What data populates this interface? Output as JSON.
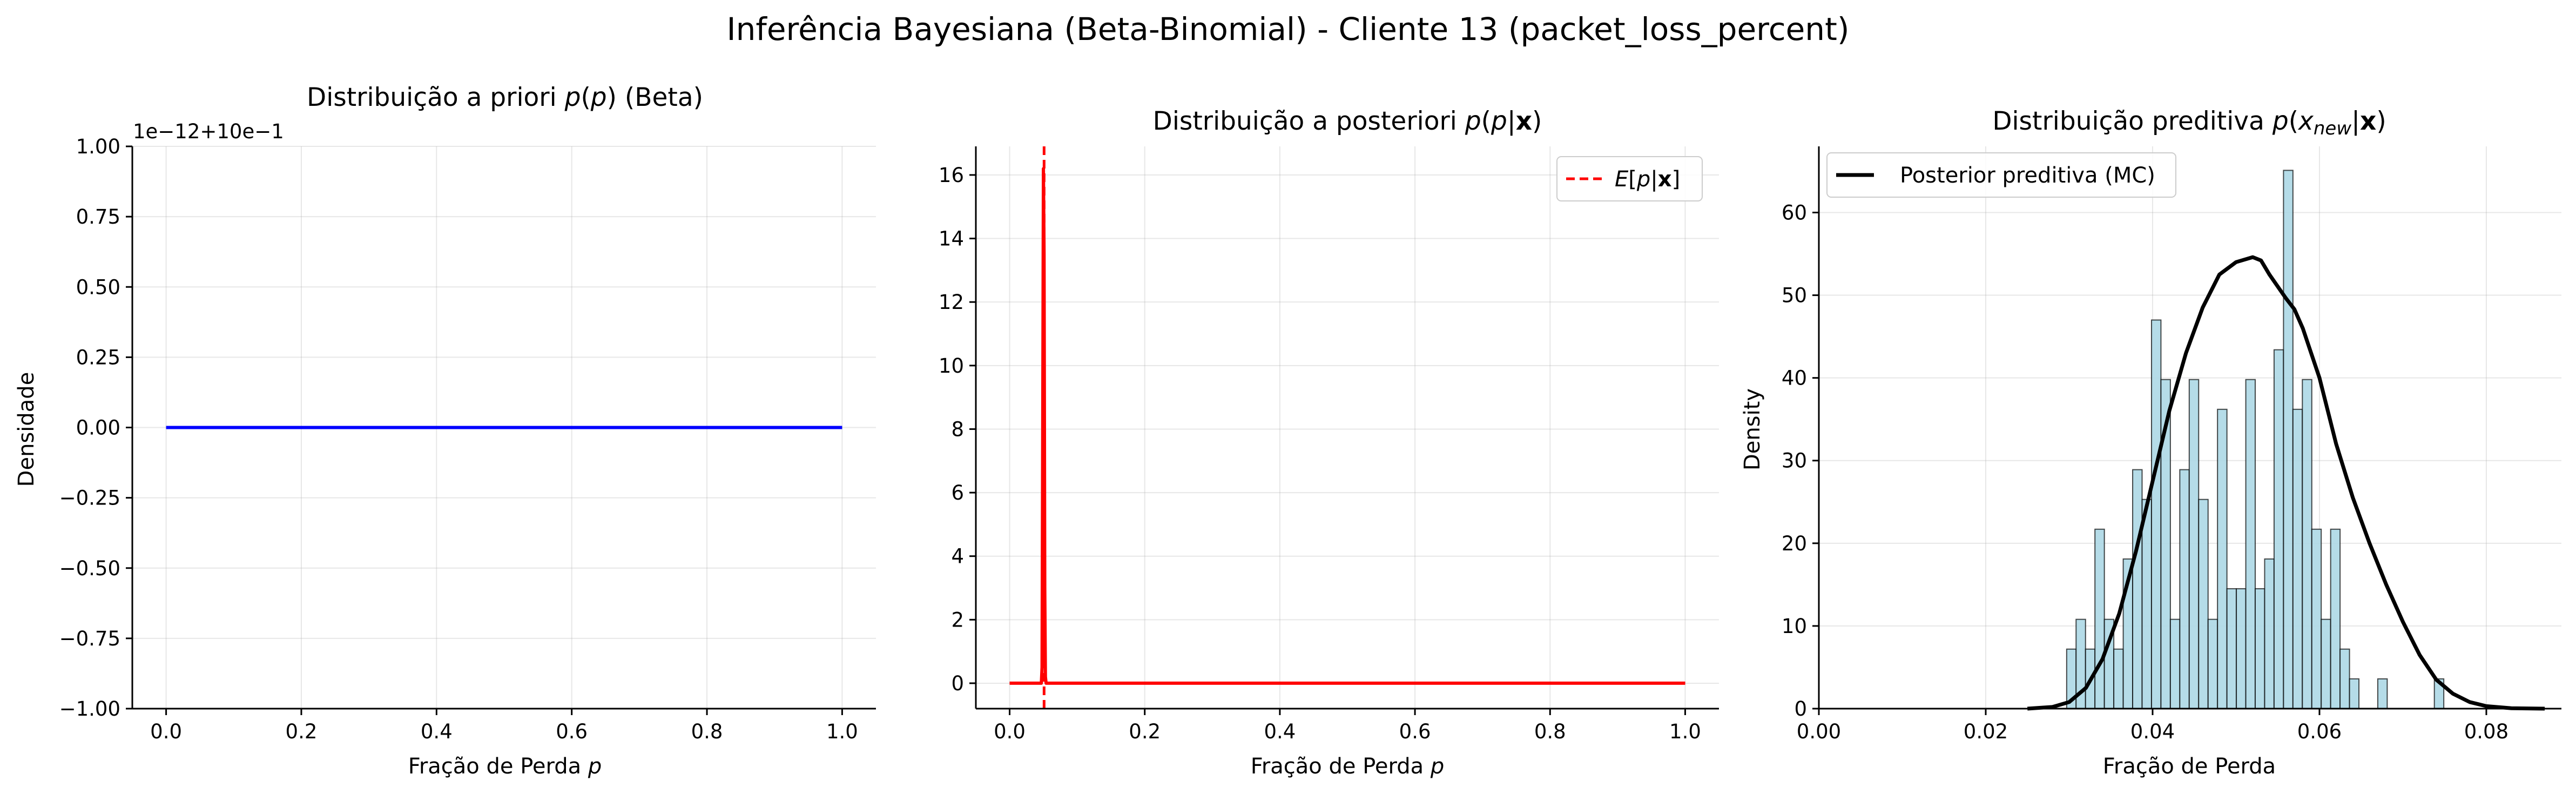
{
  "suptitle": "Inferência Bayesiana (Beta-Binomial) - Cliente 13 (packet_loss_percent)",
  "chart_data": [
    {
      "type": "line",
      "title": "Distribuição a priori p(p) (Beta)",
      "xlabel": "Fração de Perda p",
      "ylabel": "Densidade",
      "xlim": [
        -0.05,
        1.05
      ],
      "ylim": [
        -1.0,
        1.0
      ],
      "y_offset_text": "1e−12+10e−1",
      "xticks": [
        0.0,
        0.2,
        0.4,
        0.6,
        0.8,
        1.0
      ],
      "xtick_labels": [
        "0.0",
        "0.2",
        "0.4",
        "0.6",
        "0.8",
        "1.0"
      ],
      "yticks": [
        -1.0,
        -0.75,
        -0.5,
        -0.25,
        0.0,
        0.25,
        0.5,
        0.75,
        1.0
      ],
      "ytick_labels": [
        "−1.00",
        "−0.75",
        "−0.50",
        "−0.25",
        "0.00",
        "0.25",
        "0.50",
        "0.75",
        "1.00"
      ],
      "grid": true,
      "series": [
        {
          "color": "#0000ff",
          "x": [
            0.0,
            1.0
          ],
          "y": [
            0.0,
            0.0
          ]
        }
      ]
    },
    {
      "type": "line",
      "title": "Distribuição a posteriori p(p|x)",
      "xlabel": "Fração de Perda p",
      "ylabel": "",
      "xlim": [
        -0.05,
        1.05
      ],
      "ylim": [
        -0.8,
        16.9
      ],
      "xticks": [
        0.0,
        0.2,
        0.4,
        0.6,
        0.8,
        1.0
      ],
      "xtick_labels": [
        "0.0",
        "0.2",
        "0.4",
        "0.6",
        "0.8",
        "1.0"
      ],
      "yticks": [
        0,
        2,
        4,
        6,
        8,
        10,
        12,
        14,
        16
      ],
      "ytick_labels": [
        "0",
        "2",
        "4",
        "6",
        "8",
        "10",
        "12",
        "14",
        "16"
      ],
      "grid": true,
      "legend_position": "top-right",
      "series": [
        {
          "color": "#ff0000",
          "x": [
            0.0,
            0.047,
            0.048,
            0.049,
            0.05,
            0.051,
            0.052,
            0.053,
            0.054,
            1.0
          ],
          "y": [
            0.0,
            0.0,
            0.5,
            8.0,
            16.2,
            13.5,
            3.0,
            0.2,
            0.0,
            0.0
          ]
        }
      ],
      "vlines": [
        {
          "name": "E[p|x]",
          "x": 0.051,
          "color": "#ff0000",
          "style": "dashed"
        }
      ]
    },
    {
      "type": "bar",
      "title": "Distribuição preditiva p(x_new|x)",
      "xlabel": "Fração de Perda",
      "ylabel": "Density",
      "xlim": [
        0.0,
        0.089
      ],
      "ylim": [
        0,
        68
      ],
      "xticks": [
        0.0,
        0.02,
        0.04,
        0.06,
        0.08
      ],
      "xtick_labels": [
        "0.00",
        "0.02",
        "0.04",
        "0.06",
        "0.08"
      ],
      "yticks": [
        0,
        10,
        20,
        30,
        40,
        50,
        60
      ],
      "ytick_labels": [
        "0",
        "10",
        "20",
        "30",
        "40",
        "50",
        "60"
      ],
      "grid": true,
      "legend_position": "top-left",
      "hist_color": "#add8e6",
      "hist_bin_start": 0.0297,
      "hist_bin_width": 0.00113,
      "hist_values": [
        7.2,
        10.8,
        7.2,
        21.7,
        10.8,
        7.2,
        18.1,
        28.9,
        25.3,
        47.0,
        39.8,
        10.8,
        28.9,
        39.8,
        25.3,
        10.8,
        36.2,
        14.5,
        14.5,
        39.8,
        14.5,
        18.1,
        43.4,
        65.1,
        36.2,
        39.8,
        21.7,
        10.8,
        21.7,
        7.2,
        3.6,
        0,
        0,
        3.6,
        0,
        0,
        0,
        0,
        0,
        3.6
      ],
      "series": [
        {
          "name": "Posterior preditiva (MC)",
          "color": "#000000",
          "x": [
            0.025,
            0.028,
            0.03,
            0.032,
            0.034,
            0.036,
            0.038,
            0.04,
            0.042,
            0.044,
            0.046,
            0.048,
            0.05,
            0.052,
            0.053,
            0.054,
            0.056,
            0.057,
            0.058,
            0.06,
            0.062,
            0.064,
            0.066,
            0.068,
            0.07,
            0.072,
            0.074,
            0.076,
            0.078,
            0.08,
            0.083,
            0.087
          ],
          "y": [
            0.0,
            0.2,
            0.8,
            2.5,
            6.0,
            11.5,
            19.0,
            27.5,
            36.0,
            43.0,
            48.5,
            52.5,
            54.0,
            54.6,
            54.2,
            52.5,
            49.6,
            48.3,
            46.0,
            40.0,
            32.0,
            25.5,
            20.0,
            15.0,
            10.5,
            6.5,
            3.5,
            1.8,
            0.8,
            0.3,
            0.05,
            0.0
          ]
        }
      ]
    }
  ]
}
